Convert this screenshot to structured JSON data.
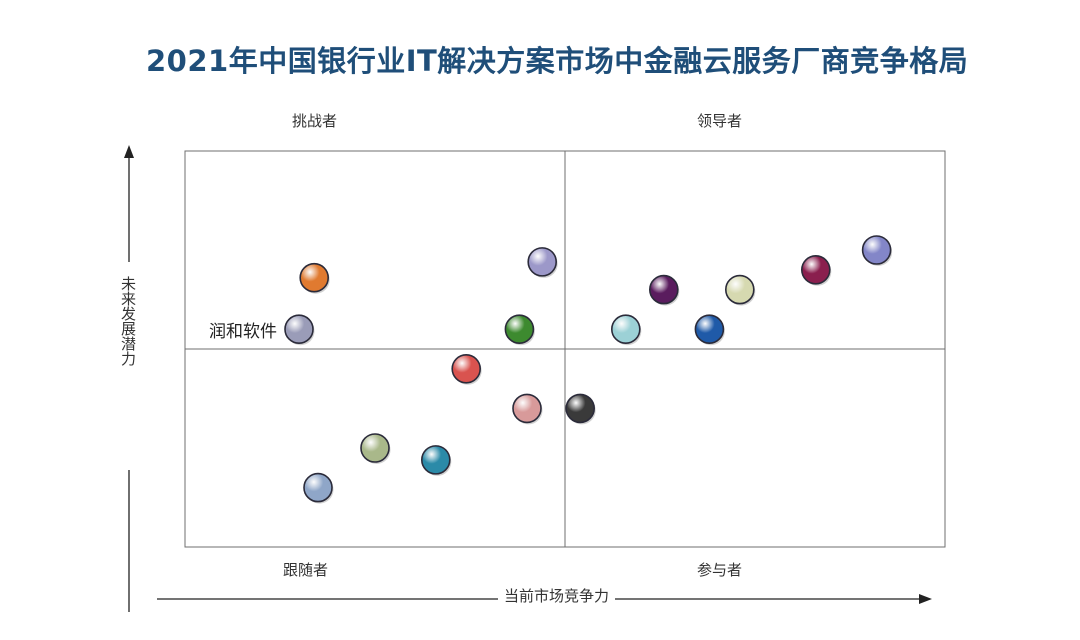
{
  "title": "2021年中国银行业IT解决方案市场中金融云服务厂商竞争格局",
  "chart_data": {
    "type": "scatter",
    "title": "2021年中国银行业IT解决方案市场中金融云服务厂商竞争格局",
    "xlabel": "当前市场竞争力",
    "ylabel": "未来发展潜力",
    "xlim": [
      0,
      10
    ],
    "ylim": [
      0,
      10
    ],
    "grid": false,
    "quadrants": {
      "top_left": "挑战者",
      "top_right": "领导者",
      "bottom_left": "跟随者",
      "bottom_right": "参与者"
    },
    "points": [
      {
        "x": 1.7,
        "y": 6.8,
        "color": "#e07a30"
      },
      {
        "x": 1.5,
        "y": 5.5,
        "color": "#9a9cb8",
        "label": "润和软件"
      },
      {
        "x": 4.7,
        "y": 7.2,
        "color": "#9c98c9"
      },
      {
        "x": 4.4,
        "y": 5.5,
        "color": "#3d8a2f"
      },
      {
        "x": 3.7,
        "y": 4.5,
        "color": "#d9534f"
      },
      {
        "x": 4.5,
        "y": 3.5,
        "color": "#d89a9a"
      },
      {
        "x": 5.2,
        "y": 3.5,
        "color": "#3a3a3a"
      },
      {
        "x": 2.5,
        "y": 2.5,
        "color": "#a9b88a"
      },
      {
        "x": 3.3,
        "y": 2.2,
        "color": "#2b8aa8"
      },
      {
        "x": 1.75,
        "y": 1.5,
        "color": "#8fa6c8"
      },
      {
        "x": 6.3,
        "y": 6.5,
        "color": "#5a1c5e"
      },
      {
        "x": 7.3,
        "y": 6.5,
        "color": "#d6d9b0"
      },
      {
        "x": 5.8,
        "y": 5.5,
        "color": "#9cd1d6"
      },
      {
        "x": 6.9,
        "y": 5.5,
        "color": "#1f5aa8"
      },
      {
        "x": 8.3,
        "y": 7.0,
        "color": "#8a1f4e"
      },
      {
        "x": 9.1,
        "y": 7.5,
        "color": "#8386c8"
      }
    ]
  }
}
